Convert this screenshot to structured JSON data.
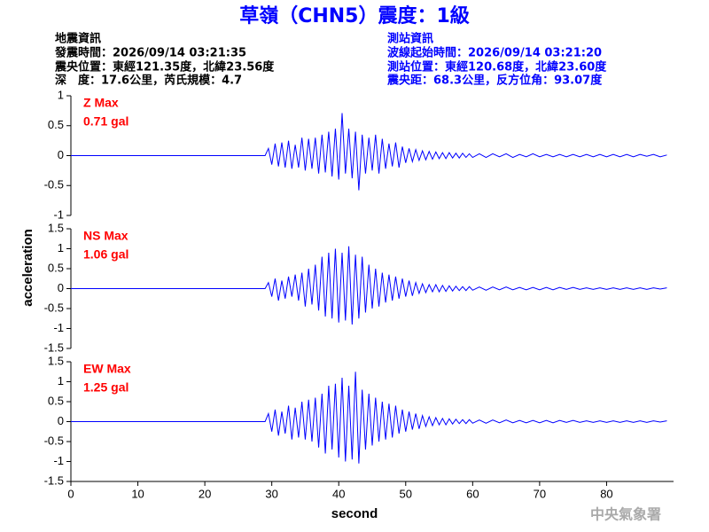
{
  "header": {
    "title": "草嶺（CHN5）震度：1級",
    "left": [
      "地震資訊",
      "發震時間：2026/09/14 03:21:35",
      "震央位置：東經121.35度，北緯23.56度",
      "深　度：17.6公里，芮氏規模：4.7"
    ],
    "right": [
      "測站資訊",
      "波線起始時間：2026/09/14 03:21:20",
      "測站位置：東經120.68度，北緯23.60度",
      "震央距：68.3公里，反方位角：93.07度"
    ]
  },
  "ylabel": "acceleration",
  "footer": "中央氣象署",
  "chart_data": [
    {
      "type": "line",
      "annotations": [
        "Z Max",
        "0.71 gal"
      ],
      "x": [
        0,
        29,
        29.5,
        30,
        30.5,
        31,
        31.5,
        32,
        32.5,
        33,
        33.5,
        34,
        34.5,
        35,
        35.5,
        36,
        36.5,
        37,
        37.5,
        38,
        38.5,
        39,
        39.5,
        40,
        40.5,
        41,
        41.5,
        42,
        42.5,
        43,
        43.5,
        44,
        44.5,
        45,
        45.5,
        46,
        46.5,
        47,
        47.5,
        48,
        48.5,
        49,
        49.5,
        50,
        50.5,
        51,
        51.5,
        52,
        52.5,
        53,
        53.5,
        54,
        54.5,
        55,
        55.5,
        56,
        56.5,
        57,
        57.5,
        58,
        58.5,
        59,
        59.5,
        60,
        61,
        62,
        63,
        64,
        65,
        66,
        67,
        68,
        69,
        70,
        71,
        72,
        73,
        74,
        75,
        76,
        77,
        78,
        79,
        80,
        81,
        82,
        83,
        84,
        85,
        86,
        87,
        88,
        89
      ],
      "series": [
        {
          "color": "#0000ff",
          "values": [
            0,
            0,
            0.12,
            -0.15,
            0.2,
            -0.18,
            0.22,
            -0.2,
            0.25,
            -0.22,
            0.18,
            -0.2,
            0.3,
            -0.25,
            0.28,
            -0.22,
            0.3,
            -0.3,
            0.35,
            -0.28,
            0.4,
            -0.35,
            0.45,
            -0.4,
            0.71,
            -0.3,
            0.45,
            -0.38,
            0.4,
            -0.58,
            0.35,
            -0.3,
            0.3,
            -0.25,
            0.35,
            -0.3,
            0.28,
            -0.22,
            0.2,
            -0.18,
            0.22,
            -0.2,
            0.15,
            -0.12,
            0.12,
            -0.1,
            0.1,
            -0.08,
            0.08,
            -0.07,
            0.07,
            -0.06,
            0.06,
            -0.05,
            0.05,
            -0.05,
            0.05,
            -0.04,
            0.04,
            -0.04,
            0.04,
            -0.03,
            0.03,
            -0.03,
            0.03,
            -0.03,
            0.03,
            -0.02,
            0.03,
            -0.03,
            0.02,
            -0.02,
            0.03,
            -0.02,
            0.02,
            -0.02,
            0.02,
            -0.02,
            0.02,
            -0.02,
            0.02,
            -0.02,
            0.02,
            -0.02,
            0.02,
            -0.02,
            0.02,
            -0.02,
            0.02,
            -0.01,
            0.02,
            -0.02,
            0.01
          ]
        }
      ],
      "xlim": [
        0,
        90
      ],
      "ylim": [
        -1,
        1
      ],
      "yticks": [
        -1,
        -0.5,
        0,
        0.5,
        1
      ]
    },
    {
      "type": "line",
      "annotations": [
        "NS Max",
        "1.06 gal"
      ],
      "x": [
        0,
        29,
        29.5,
        30,
        30.5,
        31,
        31.5,
        32,
        32.5,
        33,
        33.5,
        34,
        34.5,
        35,
        35.5,
        36,
        36.5,
        37,
        37.5,
        38,
        38.5,
        39,
        39.5,
        40,
        40.5,
        41,
        41.5,
        42,
        42.5,
        43,
        43.5,
        44,
        44.5,
        45,
        45.5,
        46,
        46.5,
        47,
        47.5,
        48,
        48.5,
        49,
        49.5,
        50,
        50.5,
        51,
        51.5,
        52,
        52.5,
        53,
        53.5,
        54,
        54.5,
        55,
        55.5,
        56,
        56.5,
        57,
        57.5,
        58,
        58.5,
        59,
        59.5,
        60,
        61,
        62,
        63,
        64,
        65,
        66,
        67,
        68,
        69,
        70,
        71,
        72,
        73,
        74,
        75,
        76,
        77,
        78,
        79,
        80,
        81,
        82,
        83,
        84,
        85,
        86,
        87,
        88,
        89
      ],
      "series": [
        {
          "color": "#0000ff",
          "values": [
            0,
            0,
            0.15,
            -0.2,
            0.25,
            -0.3,
            0.2,
            -0.25,
            0.3,
            -0.2,
            0.35,
            -0.3,
            0.4,
            -0.45,
            0.5,
            -0.4,
            0.6,
            -0.55,
            0.8,
            -0.7,
            0.9,
            -0.75,
            1.0,
            -0.85,
            0.9,
            -0.8,
            1.06,
            -0.9,
            0.85,
            -0.75,
            0.8,
            -0.6,
            0.6,
            -0.5,
            0.5,
            -0.45,
            0.4,
            -0.35,
            0.35,
            -0.3,
            0.3,
            -0.25,
            0.25,
            -0.2,
            0.2,
            -0.18,
            0.15,
            -0.12,
            0.12,
            -0.1,
            0.1,
            -0.08,
            0.1,
            -0.08,
            0.08,
            -0.07,
            0.07,
            -0.06,
            0.06,
            -0.05,
            0.05,
            -0.05,
            0.05,
            -0.04,
            0.04,
            -0.04,
            0.04,
            -0.03,
            0.04,
            -0.03,
            0.03,
            -0.03,
            0.03,
            -0.03,
            0.03,
            -0.03,
            0.03,
            -0.02,
            0.03,
            -0.02,
            0.02,
            -0.02,
            0.02,
            -0.02,
            0.02,
            -0.02,
            0.02,
            -0.02,
            0.02,
            -0.02,
            0.02,
            -0.01,
            0.02
          ]
        }
      ],
      "xlim": [
        0,
        90
      ],
      "ylim": [
        -1.5,
        1.5
      ],
      "yticks": [
        -1.5,
        -1,
        -0.5,
        0,
        0.5,
        1,
        1.5
      ]
    },
    {
      "type": "line",
      "annotations": [
        "EW Max",
        "1.25 gal"
      ],
      "xlabel": "second",
      "x": [
        0,
        29,
        29.5,
        30,
        30.5,
        31,
        31.5,
        32,
        32.5,
        33,
        33.5,
        34,
        34.5,
        35,
        35.5,
        36,
        36.5,
        37,
        37.5,
        38,
        38.5,
        39,
        39.5,
        40,
        40.5,
        41,
        41.5,
        42,
        42.5,
        43,
        43.5,
        44,
        44.5,
        45,
        45.5,
        46,
        46.5,
        47,
        47.5,
        48,
        48.5,
        49,
        49.5,
        50,
        50.5,
        51,
        51.5,
        52,
        52.5,
        53,
        53.5,
        54,
        54.5,
        55,
        55.5,
        56,
        56.5,
        57,
        57.5,
        58,
        58.5,
        59,
        59.5,
        60,
        61,
        62,
        63,
        64,
        65,
        66,
        67,
        68,
        69,
        70,
        71,
        72,
        73,
        74,
        75,
        76,
        77,
        78,
        79,
        80,
        81,
        82,
        83,
        84,
        85,
        86,
        87,
        88,
        89
      ],
      "series": [
        {
          "color": "#0000ff",
          "values": [
            0,
            0,
            0.2,
            -0.25,
            0.3,
            -0.35,
            0.25,
            -0.3,
            0.4,
            -0.45,
            0.35,
            -0.4,
            0.5,
            -0.45,
            0.55,
            -0.5,
            0.6,
            -0.65,
            0.7,
            -0.8,
            0.9,
            -0.7,
            0.95,
            -0.9,
            1.1,
            -1.0,
            0.9,
            -0.95,
            1.25,
            -1.05,
            0.8,
            -0.7,
            0.7,
            -0.6,
            0.6,
            -0.5,
            0.5,
            -0.45,
            0.45,
            -0.4,
            0.4,
            -0.3,
            0.3,
            -0.25,
            0.25,
            -0.2,
            0.2,
            -0.18,
            0.15,
            -0.12,
            0.12,
            -0.1,
            0.1,
            -0.08,
            0.08,
            -0.08,
            0.07,
            -0.06,
            0.06,
            -0.05,
            0.05,
            -0.05,
            0.05,
            -0.04,
            0.04,
            -0.04,
            0.04,
            -0.03,
            0.04,
            -0.03,
            0.03,
            -0.03,
            0.03,
            -0.03,
            0.03,
            -0.03,
            0.03,
            -0.02,
            0.03,
            -0.02,
            0.02,
            -0.02,
            0.02,
            -0.02,
            0.02,
            -0.02,
            0.02,
            -0.02,
            0.02,
            -0.02,
            0.02,
            -0.01,
            0.02
          ]
        }
      ],
      "xlim": [
        0,
        90
      ],
      "ylim": [
        -1.5,
        1.5
      ],
      "yticks": [
        -1.5,
        -1,
        -0.5,
        0,
        0.5,
        1,
        1.5
      ],
      "xticks": [
        0,
        10,
        20,
        30,
        40,
        50,
        60,
        70,
        80
      ]
    }
  ]
}
